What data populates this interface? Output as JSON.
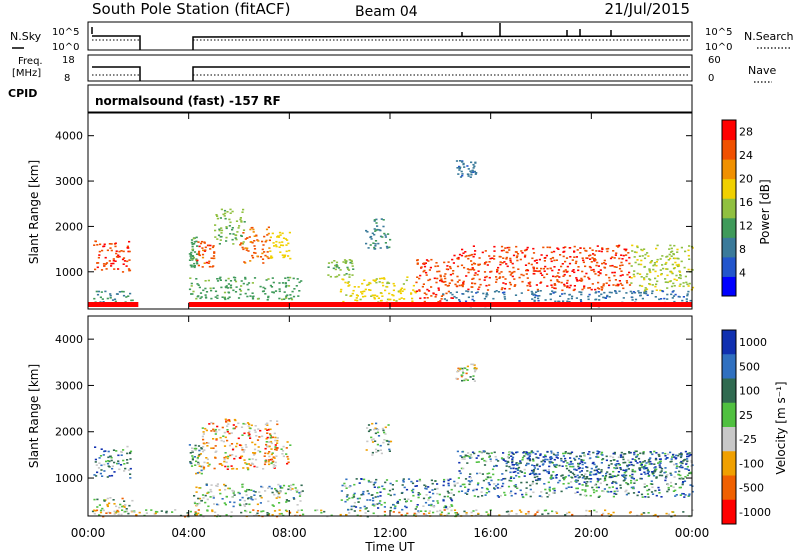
{
  "header": {
    "station": "South Pole Station (fitACF)",
    "beam": "Beam 04",
    "date": "21/Jul/2015"
  },
  "status_panels": {
    "nsky_label": "N.Sky",
    "nsearch_label": "N.Search",
    "freq_label_1": "Freq.",
    "freq_label_2": "[MHz]",
    "nave_label": "Nave",
    "cpid_label": "CPID",
    "cpid_text": "normalsound (fast) -157 RF",
    "nsky_ticks": [
      "10^5",
      "10^0"
    ],
    "nsearch_ticks": [
      "10^5",
      "10^0"
    ],
    "freq_ticks": [
      "18",
      "8"
    ],
    "nave_ticks": [
      "60",
      "0"
    ],
    "data_gap_hours": [
      2.0,
      4.0
    ]
  },
  "chart_data": [
    {
      "type": "heatmap",
      "name": "power",
      "ylabel": "Slant Range [km]",
      "xlabel": "",
      "x_range_hours": [
        0,
        24
      ],
      "y_range_km": [
        180,
        4500
      ],
      "y_ticks": [
        "1000",
        "2000",
        "3000",
        "4000"
      ],
      "colorbar": {
        "label": "Power [dB]",
        "ticks": [
          "4",
          "8",
          "12",
          "16",
          "20",
          "24",
          "28"
        ],
        "range": [
          0,
          30
        ],
        "colors": [
          "#0000ff",
          "#2255cc",
          "#3a7a9a",
          "#3f9a5a",
          "#90c040",
          "#f0d000",
          "#f09000",
          "#f05000",
          "#ff0000"
        ]
      },
      "regions": [
        {
          "t0": 0.2,
          "t1": 1.7,
          "r0": 1000,
          "r1": 1700,
          "level": 26
        },
        {
          "t0": 0.2,
          "t1": 1.8,
          "r0": 250,
          "r1": 600,
          "level": 10
        },
        {
          "t0": 4.0,
          "t1": 4.3,
          "r0": 1100,
          "r1": 1800,
          "level": 12
        },
        {
          "t0": 4.3,
          "t1": 5.0,
          "r0": 1100,
          "r1": 1700,
          "level": 25
        },
        {
          "t0": 5.0,
          "t1": 6.2,
          "r0": 1600,
          "r1": 2400,
          "level": 14
        },
        {
          "t0": 6.0,
          "t1": 7.2,
          "r0": 1200,
          "r1": 2000,
          "level": 24
        },
        {
          "t0": 7.2,
          "t1": 8.0,
          "r0": 1300,
          "r1": 1900,
          "level": 18
        },
        {
          "t0": 4.0,
          "t1": 8.5,
          "r0": 400,
          "r1": 900,
          "level": 12
        },
        {
          "t0": 10.0,
          "t1": 13.0,
          "r0": 300,
          "r1": 900,
          "level": 18
        },
        {
          "t0": 13.0,
          "t1": 14.5,
          "r0": 300,
          "r1": 1300,
          "level": 26
        },
        {
          "t0": 14.5,
          "t1": 21.5,
          "r0": 600,
          "r1": 1600,
          "level": 26
        },
        {
          "t0": 21.5,
          "t1": 24.0,
          "r0": 600,
          "r1": 1600,
          "level": 16
        },
        {
          "t0": 14.0,
          "t1": 24.0,
          "r0": 250,
          "r1": 600,
          "level": 8
        },
        {
          "t0": 14.6,
          "t1": 15.4,
          "r0": 3100,
          "r1": 3500,
          "level": 8
        },
        {
          "t0": 11.0,
          "t1": 12.0,
          "r0": 1500,
          "r1": 2200,
          "level": 10
        },
        {
          "t0": 9.5,
          "t1": 10.5,
          "r0": 900,
          "r1": 1300,
          "level": 14
        }
      ]
    },
    {
      "type": "heatmap",
      "name": "velocity",
      "ylabel": "Slant Range [km]",
      "xlabel": "Time UT",
      "x_range_hours": [
        0,
        24
      ],
      "x_ticks": [
        "00:00",
        "04:00",
        "08:00",
        "12:00",
        "16:00",
        "20:00",
        "00:00"
      ],
      "y_range_km": [
        180,
        4500
      ],
      "y_ticks": [
        "1000",
        "2000",
        "3000",
        "4000"
      ],
      "colorbar": {
        "label": "Velocity [m s⁻¹]",
        "ticks": [
          "1000",
          "500",
          "100",
          "25",
          "-25",
          "-100",
          "-500",
          "-1000"
        ],
        "colors": [
          "#1030b0",
          "#3070c0",
          "#306a50",
          "#50c040",
          "#c8c8c8",
          "#f0a000",
          "#f06000",
          "#ff0000"
        ]
      },
      "regions": [
        {
          "t0": 0.2,
          "t1": 1.7,
          "r0": 1000,
          "r1": 1700,
          "level": 2
        },
        {
          "t0": 0.2,
          "t1": 1.8,
          "r0": 250,
          "r1": 600,
          "level": 4
        },
        {
          "t0": 4.0,
          "t1": 4.5,
          "r0": 1100,
          "r1": 1800,
          "level": 3
        },
        {
          "t0": 4.5,
          "t1": 7.5,
          "r0": 1200,
          "r1": 2300,
          "level": 5
        },
        {
          "t0": 7.0,
          "t1": 8.0,
          "r0": 1300,
          "r1": 1900,
          "level": 5
        },
        {
          "t0": 4.0,
          "t1": 8.5,
          "r0": 400,
          "r1": 900,
          "level": 3
        },
        {
          "t0": 10.0,
          "t1": 14.5,
          "r0": 300,
          "r1": 1000,
          "level": 2
        },
        {
          "t0": 14.5,
          "t1": 24.0,
          "r0": 600,
          "r1": 1600,
          "level": 2
        },
        {
          "t0": 16.5,
          "t1": 24.0,
          "r0": 1000,
          "r1": 1600,
          "level": 1
        },
        {
          "t0": 14.6,
          "t1": 15.4,
          "r0": 3100,
          "r1": 3500,
          "level": 4
        },
        {
          "t0": 0.0,
          "t1": 24.0,
          "r0": 180,
          "r1": 330,
          "level": 4
        },
        {
          "t0": 11.0,
          "t1": 12.0,
          "r0": 1500,
          "r1": 2200,
          "level": 3
        }
      ]
    }
  ]
}
